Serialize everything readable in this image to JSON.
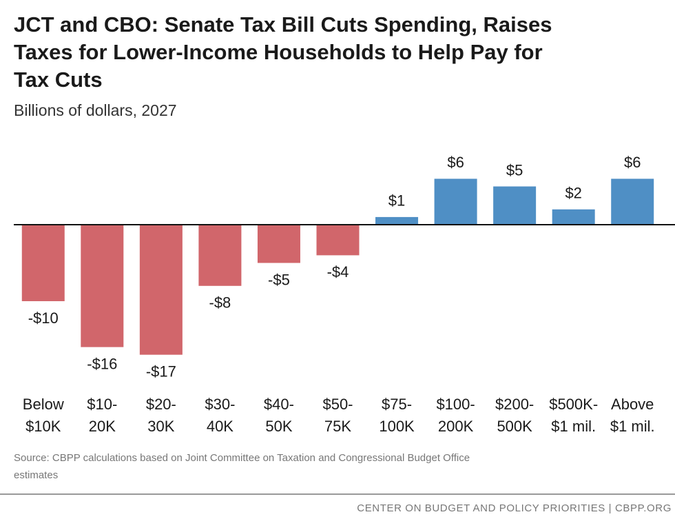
{
  "chart_data": {
    "type": "bar",
    "title": [
      "JCT and CBO: Senate Tax Bill Cuts Spending, Raises",
      "Taxes for Lower-Income Households to Help Pay for",
      "Tax Cuts"
    ],
    "subtitle": "Billions of dollars, 2027",
    "categories": [
      [
        "Below",
        "$10K"
      ],
      [
        "$10-",
        "20K"
      ],
      [
        "$20-",
        "30K"
      ],
      [
        "$30-",
        "40K"
      ],
      [
        "$40-",
        "50K"
      ],
      [
        "$50-",
        "75K"
      ],
      [
        "$75-",
        "100K"
      ],
      [
        "$100-",
        "200K"
      ],
      [
        "$200-",
        "500K"
      ],
      [
        "$500K-",
        "$1 mil."
      ],
      [
        "Above",
        "$1 mil."
      ]
    ],
    "values": [
      -10,
      -16,
      -17,
      -8,
      -5,
      -4,
      1,
      6,
      5,
      2,
      6
    ],
    "value_labels": [
      "-$10",
      "-$16",
      "-$17",
      "-$8",
      "-$5",
      "-$4",
      "$1",
      "$6",
      "$5",
      "$2",
      "$6"
    ],
    "negative_color": "#d1666b",
    "positive_color": "#4f8fc5",
    "ylim": [
      -20,
      10
    ],
    "source": [
      "Source: CBPP calculations based on Joint Committee on Taxation and Congressional Budget Office",
      "estimates"
    ],
    "credit": "CENTER ON BUDGET AND POLICY PRIORITIES | CBPP.ORG"
  }
}
